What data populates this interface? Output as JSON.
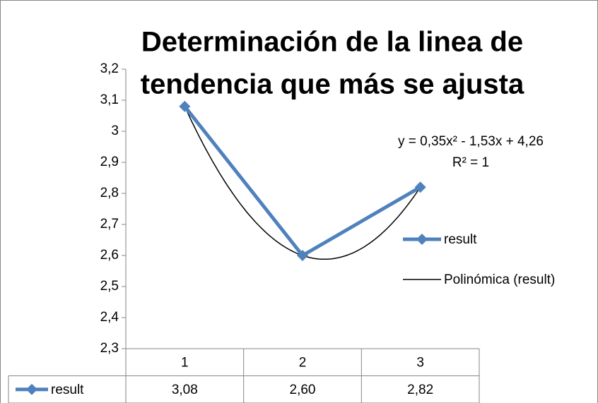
{
  "chart_data": {
    "type": "line",
    "title": [
      "Determinación de la linea de",
      "tendencia que más se ajusta"
    ],
    "categories": [
      "1",
      "2",
      "3"
    ],
    "series": [
      {
        "name": "result",
        "color": "#4f81bd",
        "values": [
          3.08,
          2.6,
          2.82
        ],
        "value_labels": [
          "3,08",
          "2,60",
          "2,82"
        ]
      }
    ],
    "trendline": {
      "name": "Polinómica (result)",
      "type": "polynomial",
      "order": 2,
      "color": "#000000",
      "equation": "y = 0,35x² - 1,53x + 4,26",
      "r_squared": "R² = 1"
    },
    "ylim": [
      2.3,
      3.2
    ],
    "yticks": [
      {
        "value": 2.3,
        "label": "2,3"
      },
      {
        "value": 2.4,
        "label": "2,4"
      },
      {
        "value": 2.5,
        "label": "2,5"
      },
      {
        "value": 2.6,
        "label": "2,6"
      },
      {
        "value": 2.7,
        "label": "2,7"
      },
      {
        "value": 2.8,
        "label": "2,8"
      },
      {
        "value": 2.9,
        "label": "2,9"
      },
      3,
      {
        "value": 3.1,
        "label": "3,1"
      },
      {
        "value": 3.2,
        "label": "3,2"
      }
    ],
    "grid": false,
    "legend": "right",
    "data_table": true
  }
}
